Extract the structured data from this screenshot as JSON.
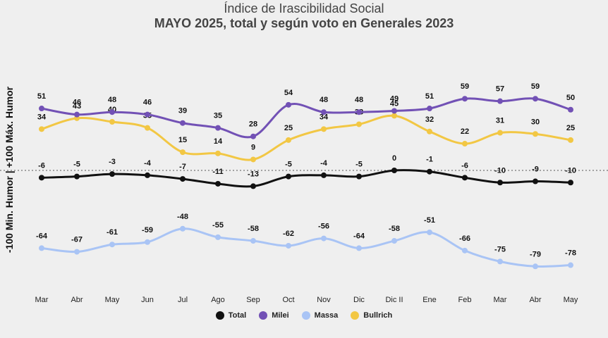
{
  "chart_data": {
    "type": "line",
    "title": "Índice de Irascibilidad Social",
    "subtitle": "MAYO 2025, total y según voto en Generales 2023",
    "ylabel": "-100 Min. Humor | +100 Máx. Humor",
    "xlabel": "",
    "ylim": [
      -100,
      100
    ],
    "grid": false,
    "reference_line": 0,
    "legend_position": "bottom",
    "categories": [
      "Mar",
      "Abr",
      "May",
      "Jun",
      "Jul",
      "Ago",
      "Sep",
      "Oct",
      "Nov",
      "Dic",
      "Dic II",
      "Ene",
      "Feb",
      "Mar",
      "Abr",
      "May"
    ],
    "series": [
      {
        "name": "Total",
        "color": "#111111",
        "values": [
          -6,
          -5,
          -3,
          -4,
          -7,
          -11,
          -13,
          -5,
          -4,
          -5,
          0,
          -1,
          -6,
          -10,
          -9,
          -10
        ]
      },
      {
        "name": "Milei",
        "color": "#7251b5",
        "values": [
          51,
          46,
          48,
          46,
          39,
          35,
          28,
          54,
          48,
          48,
          49,
          51,
          59,
          57,
          59,
          50
        ]
      },
      {
        "name": "Massa",
        "color": "#a9c4f5",
        "values": [
          -64,
          -67,
          -61,
          -59,
          -48,
          -55,
          -58,
          -62,
          -56,
          -64,
          -58,
          -51,
          -66,
          -75,
          -79,
          -78
        ]
      },
      {
        "name": "Bullrich",
        "color": "#f2c744",
        "values": [
          34,
          43,
          40,
          35,
          15,
          14,
          9,
          25,
          34,
          38,
          45,
          32,
          22,
          31,
          30,
          25
        ]
      }
    ]
  }
}
